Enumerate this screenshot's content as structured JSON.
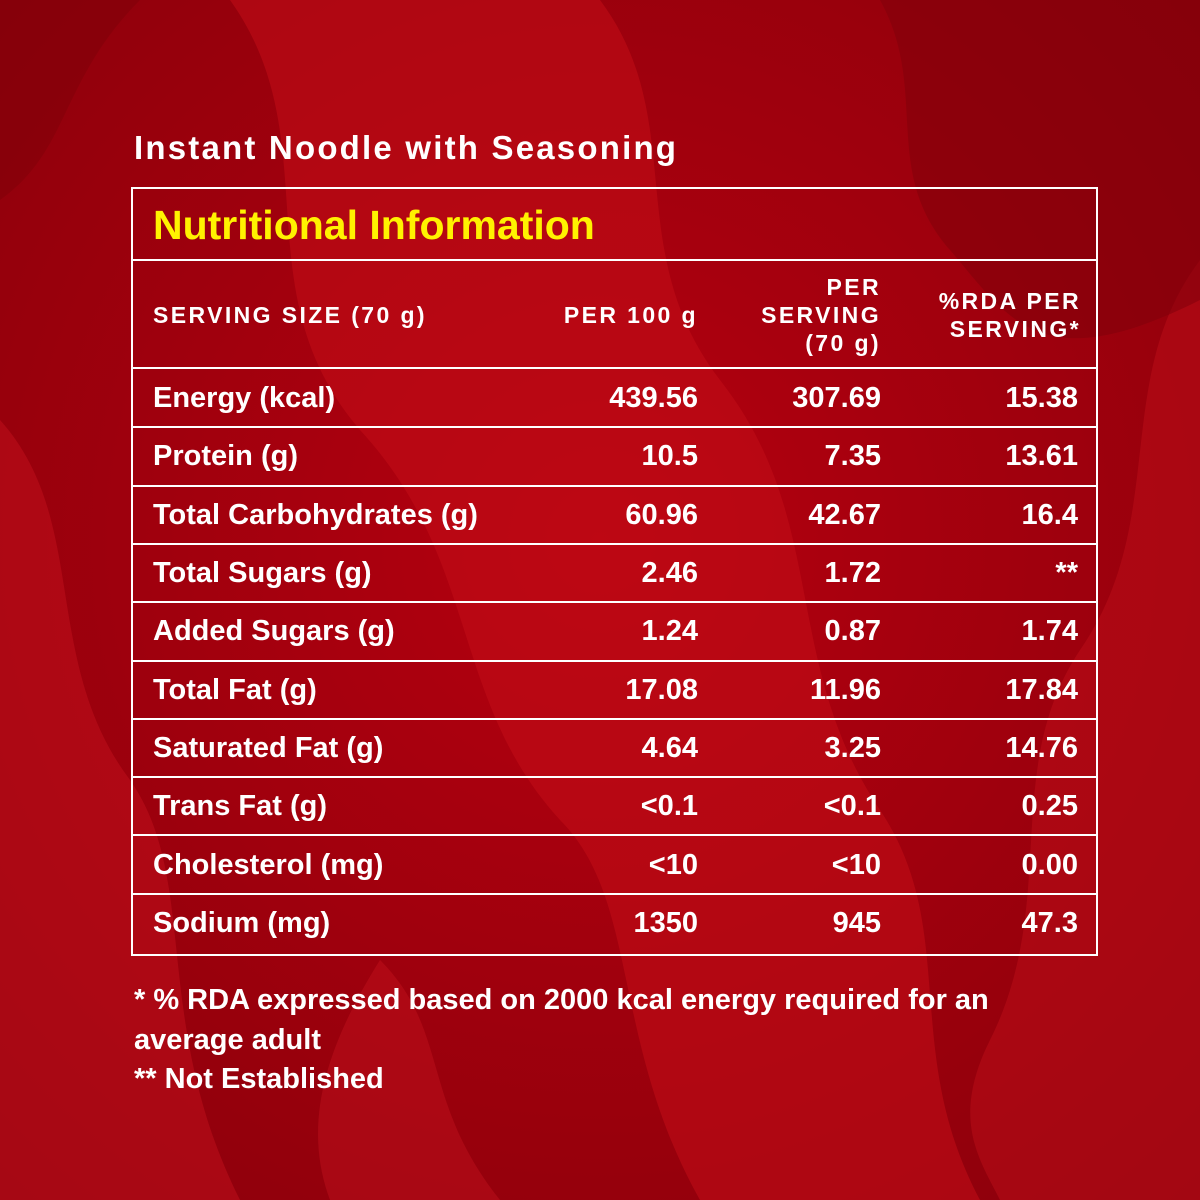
{
  "product": {
    "name": "Instant Noodle with Seasoning"
  },
  "panel": {
    "title": "Nutritional Information",
    "title_color": "#fff200",
    "background_color": "#a5000f",
    "header": {
      "serving_size": "SERVING SIZE (70 g)",
      "per_100g": "PER 100 g",
      "per_serving_line1": "PER",
      "per_serving_line2": "SERVING",
      "per_serving_line3": "(70 g)",
      "rda_line1": "%RDA PER",
      "rda_line2": "SERVING*"
    },
    "rows": [
      {
        "nutrient": "Energy (kcal)",
        "per_100g": "439.56",
        "per_serving": "307.69",
        "rda": "15.38"
      },
      {
        "nutrient": "Protein (g)",
        "per_100g": "10.5",
        "per_serving": "7.35",
        "rda": "13.61"
      },
      {
        "nutrient": "Total Carbohydrates (g)",
        "per_100g": "60.96",
        "per_serving": "42.67",
        "rda": "16.4"
      },
      {
        "nutrient": "Total Sugars (g)",
        "per_100g": "2.46",
        "per_serving": "1.72",
        "rda": "**"
      },
      {
        "nutrient": "Added Sugars (g)",
        "per_100g": "1.24",
        "per_serving": "0.87",
        "rda": "1.74"
      },
      {
        "nutrient": "Total Fat (g)",
        "per_100g": "17.08",
        "per_serving": "11.96",
        "rda": "17.84"
      },
      {
        "nutrient": "Saturated Fat (g)",
        "per_100g": "4.64",
        "per_serving": "3.25",
        "rda": "14.76"
      },
      {
        "nutrient": "Trans Fat (g)",
        "per_100g": "<0.1",
        "per_serving": "<0.1",
        "rda": "0.25"
      },
      {
        "nutrient": "Cholesterol (mg)",
        "per_100g": "<10",
        "per_serving": "<10",
        "rda": "0.00"
      },
      {
        "nutrient": "Sodium (mg)",
        "per_100g": "1350",
        "per_serving": "945",
        "rda": "47.3"
      }
    ]
  },
  "footnotes": {
    "line1": "* % RDA expressed based on 2000 kcal energy required for an",
    "line2": "average adult",
    "line3": "** Not Established"
  }
}
